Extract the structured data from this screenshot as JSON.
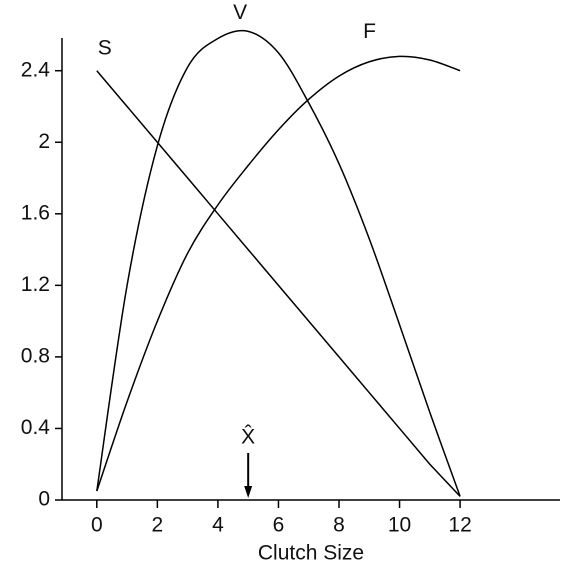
{
  "chart_data": {
    "type": "line",
    "x_label": "Clutch Size",
    "x": [
      0,
      1,
      2,
      3,
      4,
      5,
      6,
      7,
      8,
      9,
      10,
      11,
      12
    ],
    "series": [
      {
        "name": "S",
        "color": "#000000",
        "values": [
          2.4,
          2.2,
          2.0,
          1.8,
          1.6,
          1.4,
          1.2,
          1.0,
          0.8,
          0.6,
          0.4,
          0.2,
          0.02
        ]
      },
      {
        "name": "V",
        "color": "#000000",
        "values": [
          0.05,
          1.2,
          1.98,
          2.42,
          2.58,
          2.62,
          2.5,
          2.22,
          1.88,
          1.46,
          0.98,
          0.49,
          0.02
        ]
      },
      {
        "name": "F",
        "color": "#000000",
        "values": [
          0.05,
          0.55,
          1.0,
          1.38,
          1.65,
          1.87,
          2.07,
          2.24,
          2.37,
          2.45,
          2.48,
          2.46,
          2.4
        ]
      }
    ],
    "annotations": [
      {
        "text": "X̂",
        "x": 5
      }
    ],
    "xlim": [
      -1.15,
      15.3
    ],
    "xticks": [
      0,
      2,
      4,
      6,
      8,
      10,
      12
    ],
    "ylim": [
      0,
      2.65
    ],
    "yticks": [
      0,
      0.4,
      0.8,
      1.2,
      1.6,
      2.0,
      2.4
    ],
    "grid": false
  }
}
